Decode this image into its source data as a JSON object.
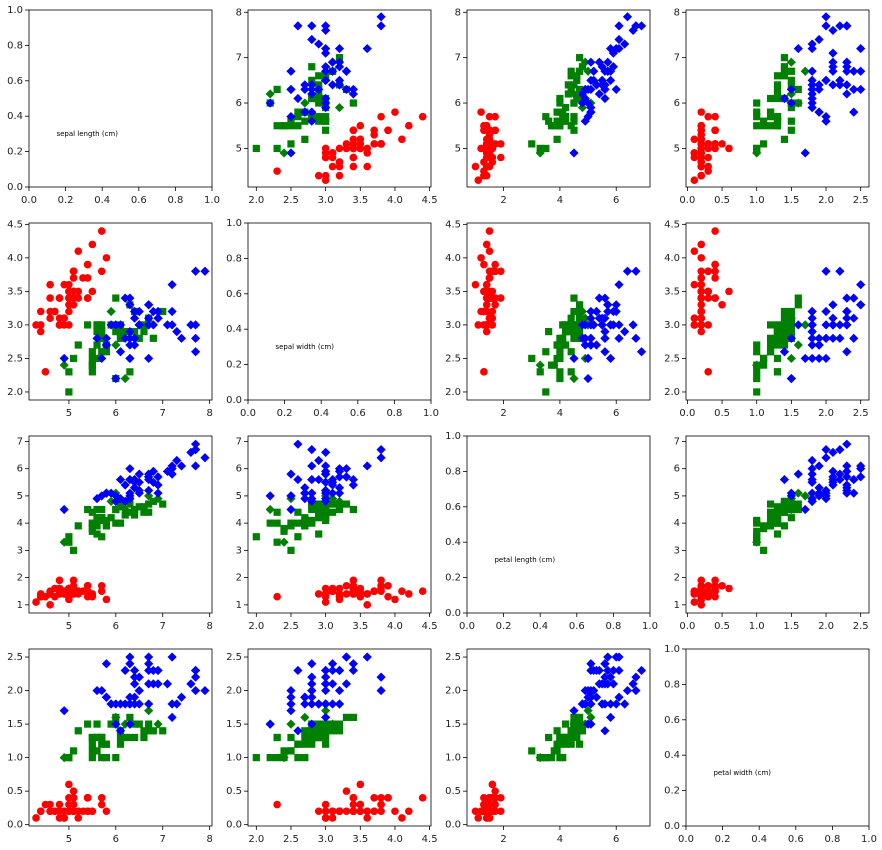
{
  "chart_data": {
    "type": "scatter",
    "grid": false,
    "layout": "4x4 scatter matrix",
    "colors": {
      "setosa": "#ff0000",
      "versicolor": "#008000",
      "virginica": "#0000ff"
    },
    "markers": {
      "setosa": "circle",
      "versicolor": "square",
      "virginica": "diamond"
    },
    "misclassified_marker": "diamond",
    "features": [
      {
        "label": "sepal length (cm)",
        "ticks": [
          5,
          6,
          7,
          8
        ]
      },
      {
        "label": "sepal width (cm)",
        "ticks": [
          2.0,
          2.5,
          3.0,
          3.5,
          4.0,
          4.5
        ]
      },
      {
        "label": "petal length (cm)",
        "ticks": [
          2,
          4,
          6
        ]
      },
      {
        "label": "petal width (cm)",
        "ticks": [
          0.0,
          0.5,
          1.0,
          1.5,
          2.0,
          2.5
        ]
      }
    ],
    "diagonal_ticks": {
      "x": [
        "0.0",
        "0.2",
        "0.4",
        "0.6",
        "0.8",
        "1.0"
      ],
      "y": [
        "0.0",
        "0.2",
        "0.4",
        "0.6",
        "0.8",
        "1.0"
      ]
    },
    "y_tick_labels": [
      [
        "0.0",
        "0.2",
        "0.4",
        "0.6",
        "0.8",
        "1.0"
      ],
      [
        "5",
        "6",
        "7",
        "8"
      ],
      [
        "2.0",
        "2.5",
        "3.0",
        "3.5",
        "4.0",
        "4.5"
      ],
      [
        "1",
        "2",
        "3",
        "4",
        "5",
        "6",
        "7"
      ],
      [
        "0.0",
        "0.5",
        "1.0",
        "1.5",
        "2.0",
        "2.5"
      ]
    ],
    "ranges": [
      [
        4.15,
        8.05
      ],
      [
        1.88,
        4.52
      ],
      [
        0.7,
        7.2
      ],
      [
        -0.02,
        2.62
      ]
    ],
    "points": [
      [
        5.1,
        3.5,
        1.4,
        0.2,
        0,
        0
      ],
      [
        4.9,
        3.0,
        1.4,
        0.2,
        0,
        0
      ],
      [
        4.7,
        3.2,
        1.3,
        0.2,
        0,
        0
      ],
      [
        4.6,
        3.1,
        1.5,
        0.2,
        0,
        0
      ],
      [
        5.0,
        3.6,
        1.4,
        0.2,
        0,
        0
      ],
      [
        5.4,
        3.9,
        1.7,
        0.4,
        0,
        0
      ],
      [
        4.6,
        3.4,
        1.4,
        0.3,
        0,
        0
      ],
      [
        5.0,
        3.4,
        1.5,
        0.2,
        0,
        0
      ],
      [
        4.4,
        2.9,
        1.4,
        0.2,
        0,
        0
      ],
      [
        4.9,
        3.1,
        1.5,
        0.1,
        0,
        0
      ],
      [
        5.4,
        3.7,
        1.5,
        0.2,
        0,
        0
      ],
      [
        4.8,
        3.4,
        1.6,
        0.2,
        0,
        0
      ],
      [
        4.8,
        3.0,
        1.4,
        0.1,
        0,
        0
      ],
      [
        4.3,
        3.0,
        1.1,
        0.1,
        0,
        0
      ],
      [
        5.8,
        4.0,
        1.2,
        0.2,
        0,
        0
      ],
      [
        5.7,
        4.4,
        1.5,
        0.4,
        0,
        0
      ],
      [
        5.4,
        3.9,
        1.3,
        0.4,
        0,
        0
      ],
      [
        5.1,
        3.5,
        1.4,
        0.3,
        0,
        0
      ],
      [
        5.7,
        3.8,
        1.7,
        0.3,
        0,
        0
      ],
      [
        5.1,
        3.8,
        1.5,
        0.3,
        0,
        0
      ],
      [
        5.4,
        3.4,
        1.7,
        0.2,
        0,
        0
      ],
      [
        5.1,
        3.7,
        1.5,
        0.4,
        0,
        0
      ],
      [
        4.6,
        3.6,
        1.0,
        0.2,
        0,
        0
      ],
      [
        5.1,
        3.3,
        1.7,
        0.5,
        0,
        0
      ],
      [
        4.8,
        3.4,
        1.9,
        0.2,
        0,
        0
      ],
      [
        5.0,
        3.0,
        1.6,
        0.2,
        0,
        0
      ],
      [
        5.0,
        3.4,
        1.6,
        0.4,
        0,
        0
      ],
      [
        5.2,
        3.5,
        1.5,
        0.2,
        0,
        0
      ],
      [
        5.2,
        3.4,
        1.4,
        0.2,
        0,
        0
      ],
      [
        4.7,
        3.2,
        1.6,
        0.2,
        0,
        0
      ],
      [
        4.8,
        3.1,
        1.6,
        0.2,
        0,
        0
      ],
      [
        5.4,
        3.4,
        1.5,
        0.4,
        0,
        0
      ],
      [
        5.2,
        4.1,
        1.5,
        0.1,
        0,
        0
      ],
      [
        5.5,
        4.2,
        1.4,
        0.2,
        0,
        0
      ],
      [
        4.9,
        3.1,
        1.5,
        0.2,
        0,
        0
      ],
      [
        5.0,
        3.2,
        1.2,
        0.2,
        0,
        0
      ],
      [
        5.5,
        3.5,
        1.3,
        0.2,
        0,
        0
      ],
      [
        4.9,
        3.6,
        1.4,
        0.1,
        0,
        0
      ],
      [
        4.4,
        3.0,
        1.3,
        0.2,
        0,
        0
      ],
      [
        5.1,
        3.4,
        1.5,
        0.2,
        0,
        0
      ],
      [
        5.0,
        3.5,
        1.3,
        0.3,
        0,
        0
      ],
      [
        4.5,
        2.3,
        1.3,
        0.3,
        0,
        0
      ],
      [
        4.4,
        3.2,
        1.3,
        0.2,
        0,
        0
      ],
      [
        5.0,
        3.5,
        1.6,
        0.6,
        0,
        0
      ],
      [
        5.1,
        3.8,
        1.9,
        0.4,
        0,
        0
      ],
      [
        4.8,
        3.0,
        1.4,
        0.3,
        0,
        0
      ],
      [
        5.1,
        3.8,
        1.6,
        0.2,
        0,
        0
      ],
      [
        4.6,
        3.2,
        1.4,
        0.2,
        0,
        0
      ],
      [
        5.3,
        3.7,
        1.5,
        0.2,
        0,
        0
      ],
      [
        5.0,
        3.3,
        1.4,
        0.2,
        0,
        0
      ],
      [
        7.0,
        3.2,
        4.7,
        1.4,
        1,
        0
      ],
      [
        6.4,
        3.2,
        4.5,
        1.5,
        1,
        0
      ],
      [
        6.9,
        3.1,
        4.9,
        1.5,
        1,
        1
      ],
      [
        5.5,
        2.3,
        4.0,
        1.3,
        1,
        0
      ],
      [
        6.5,
        2.8,
        4.6,
        1.5,
        1,
        0
      ],
      [
        5.7,
        2.8,
        4.5,
        1.3,
        1,
        0
      ],
      [
        6.3,
        3.3,
        4.7,
        1.6,
        1,
        0
      ],
      [
        4.9,
        2.4,
        3.3,
        1.0,
        1,
        1
      ],
      [
        6.6,
        2.9,
        4.6,
        1.3,
        1,
        0
      ],
      [
        5.2,
        2.7,
        3.9,
        1.4,
        1,
        0
      ],
      [
        5.0,
        2.0,
        3.5,
        1.0,
        1,
        0
      ],
      [
        5.9,
        3.0,
        4.2,
        1.5,
        1,
        0
      ],
      [
        6.0,
        2.2,
        4.0,
        1.0,
        1,
        0
      ],
      [
        6.1,
        2.9,
        4.7,
        1.4,
        1,
        0
      ],
      [
        5.6,
        2.9,
        3.6,
        1.3,
        1,
        0
      ],
      [
        6.7,
        3.1,
        4.4,
        1.4,
        1,
        0
      ],
      [
        5.6,
        3.0,
        4.5,
        1.5,
        1,
        0
      ],
      [
        5.8,
        2.7,
        4.1,
        1.0,
        1,
        0
      ],
      [
        6.2,
        2.2,
        4.5,
        1.5,
        1,
        1
      ],
      [
        5.6,
        2.5,
        3.9,
        1.1,
        1,
        0
      ],
      [
        5.9,
        3.2,
        4.8,
        1.8,
        1,
        1
      ],
      [
        6.1,
        2.8,
        4.0,
        1.3,
        1,
        0
      ],
      [
        6.3,
        2.5,
        4.9,
        1.5,
        1,
        1
      ],
      [
        6.1,
        2.8,
        4.7,
        1.2,
        1,
        0
      ],
      [
        6.4,
        2.9,
        4.3,
        1.3,
        1,
        0
      ],
      [
        6.6,
        3.0,
        4.4,
        1.4,
        1,
        0
      ],
      [
        6.8,
        2.8,
        4.8,
        1.4,
        1,
        0
      ],
      [
        6.7,
        3.0,
        5.0,
        1.7,
        1,
        1
      ],
      [
        6.0,
        2.9,
        4.5,
        1.5,
        1,
        0
      ],
      [
        5.7,
        2.6,
        3.5,
        1.0,
        1,
        0
      ],
      [
        5.5,
        2.4,
        3.8,
        1.1,
        1,
        0
      ],
      [
        5.5,
        2.4,
        3.7,
        1.0,
        1,
        0
      ],
      [
        5.8,
        2.7,
        3.9,
        1.2,
        1,
        0
      ],
      [
        6.0,
        2.7,
        5.1,
        1.6,
        1,
        1
      ],
      [
        5.4,
        3.0,
        4.5,
        1.5,
        1,
        0
      ],
      [
        6.0,
        3.4,
        4.5,
        1.6,
        1,
        0
      ],
      [
        6.7,
        3.1,
        4.7,
        1.5,
        1,
        0
      ],
      [
        6.3,
        2.3,
        4.4,
        1.3,
        1,
        0
      ],
      [
        5.6,
        3.0,
        4.1,
        1.3,
        1,
        0
      ],
      [
        5.5,
        2.5,
        4.0,
        1.3,
        1,
        0
      ],
      [
        5.5,
        2.6,
        4.4,
        1.2,
        1,
        0
      ],
      [
        6.1,
        3.0,
        4.6,
        1.4,
        1,
        0
      ],
      [
        5.8,
        2.6,
        4.0,
        1.2,
        1,
        0
      ],
      [
        5.0,
        2.3,
        3.3,
        1.0,
        1,
        0
      ],
      [
        5.6,
        2.7,
        4.2,
        1.3,
        1,
        0
      ],
      [
        5.7,
        3.0,
        4.2,
        1.2,
        1,
        0
      ],
      [
        5.7,
        2.9,
        4.2,
        1.3,
        1,
        0
      ],
      [
        6.2,
        2.9,
        4.3,
        1.3,
        1,
        0
      ],
      [
        5.1,
        2.5,
        3.0,
        1.1,
        1,
        0
      ],
      [
        5.7,
        2.8,
        4.1,
        1.3,
        1,
        0
      ],
      [
        6.3,
        3.3,
        6.0,
        2.5,
        2,
        0
      ],
      [
        5.8,
        2.7,
        5.1,
        1.9,
        2,
        0
      ],
      [
        7.1,
        3.0,
        5.9,
        2.1,
        2,
        0
      ],
      [
        6.3,
        2.9,
        5.6,
        1.8,
        2,
        0
      ],
      [
        6.5,
        3.0,
        5.8,
        2.2,
        2,
        0
      ],
      [
        7.6,
        3.0,
        6.6,
        2.1,
        2,
        0
      ],
      [
        4.9,
        2.5,
        4.5,
        1.7,
        2,
        0
      ],
      [
        7.3,
        2.9,
        6.3,
        1.8,
        2,
        0
      ],
      [
        6.7,
        2.5,
        5.8,
        1.8,
        2,
        0
      ],
      [
        7.2,
        3.6,
        6.1,
        2.5,
        2,
        0
      ],
      [
        6.5,
        3.2,
        5.1,
        2.0,
        2,
        0
      ],
      [
        6.4,
        2.7,
        5.3,
        1.9,
        2,
        0
      ],
      [
        6.8,
        3.0,
        5.5,
        2.1,
        2,
        0
      ],
      [
        5.7,
        2.5,
        5.0,
        2.0,
        2,
        0
      ],
      [
        5.8,
        2.8,
        5.1,
        2.4,
        2,
        0
      ],
      [
        6.4,
        3.2,
        5.3,
        2.3,
        2,
        0
      ],
      [
        6.5,
        3.0,
        5.5,
        1.8,
        2,
        0
      ],
      [
        7.7,
        3.8,
        6.7,
        2.2,
        2,
        0
      ],
      [
        7.7,
        2.6,
        6.9,
        2.3,
        2,
        0
      ],
      [
        6.0,
        2.2,
        5.0,
        1.5,
        2,
        0
      ],
      [
        6.9,
        3.2,
        5.7,
        2.3,
        2,
        0
      ],
      [
        5.6,
        2.8,
        4.9,
        2.0,
        2,
        0
      ],
      [
        7.7,
        2.8,
        6.7,
        2.0,
        2,
        0
      ],
      [
        6.3,
        2.7,
        4.9,
        1.8,
        2,
        0
      ],
      [
        6.7,
        3.3,
        5.7,
        2.1,
        2,
        0
      ],
      [
        7.2,
        3.2,
        6.0,
        1.8,
        2,
        0
      ],
      [
        6.2,
        2.8,
        4.8,
        1.8,
        2,
        0
      ],
      [
        6.1,
        3.0,
        4.9,
        1.8,
        2,
        0
      ],
      [
        6.4,
        2.8,
        5.6,
        2.1,
        2,
        0
      ],
      [
        7.2,
        3.0,
        5.8,
        1.6,
        2,
        0
      ],
      [
        7.4,
        2.8,
        6.1,
        1.9,
        2,
        0
      ],
      [
        7.9,
        3.8,
        6.4,
        2.0,
        2,
        0
      ],
      [
        6.4,
        2.8,
        5.6,
        2.2,
        2,
        0
      ],
      [
        6.3,
        2.8,
        5.1,
        1.5,
        2,
        0
      ],
      [
        6.1,
        2.6,
        5.6,
        1.4,
        2,
        0
      ],
      [
        7.7,
        3.0,
        6.1,
        2.3,
        2,
        0
      ],
      [
        6.3,
        3.4,
        5.6,
        2.4,
        2,
        0
      ],
      [
        6.4,
        3.1,
        5.5,
        1.8,
        2,
        0
      ],
      [
        6.0,
        3.0,
        4.8,
        1.8,
        2,
        0
      ],
      [
        6.9,
        3.1,
        5.4,
        2.1,
        2,
        0
      ],
      [
        6.7,
        3.1,
        5.6,
        2.4,
        2,
        0
      ],
      [
        6.9,
        3.1,
        5.1,
        2.3,
        2,
        0
      ],
      [
        5.8,
        2.7,
        5.1,
        1.9,
        2,
        0
      ],
      [
        6.8,
        3.2,
        5.9,
        2.3,
        2,
        0
      ],
      [
        6.7,
        3.3,
        5.7,
        2.5,
        2,
        0
      ],
      [
        6.7,
        3.0,
        5.2,
        2.3,
        2,
        0
      ],
      [
        6.3,
        2.5,
        5.0,
        1.9,
        2,
        0
      ],
      [
        6.5,
        3.0,
        5.2,
        2.0,
        2,
        0
      ],
      [
        6.2,
        3.4,
        5.4,
        2.3,
        2,
        0
      ],
      [
        5.9,
        3.0,
        5.1,
        1.8,
        2,
        0
      ]
    ]
  }
}
